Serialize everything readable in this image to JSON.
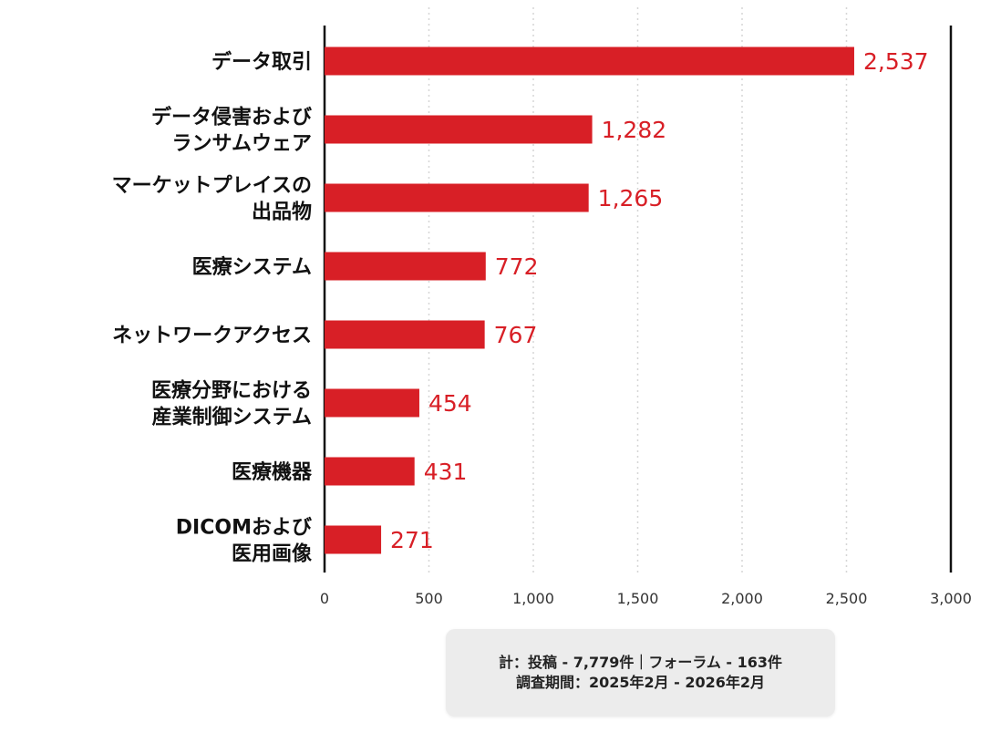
{
  "chart_data": {
    "type": "bar",
    "orientation": "horizontal",
    "categories": [
      [
        "データ取引"
      ],
      [
        "データ侵害および",
        "ランサムウェア"
      ],
      [
        "マーケットプレイスの",
        "出品物"
      ],
      [
        "医療システム"
      ],
      [
        "ネットワークアクセス"
      ],
      [
        "医療分野における",
        "産業制御システム"
      ],
      [
        "医療機器"
      ],
      [
        "DICOMおよび",
        "医用画像"
      ]
    ],
    "values": [
      2537,
      1282,
      1265,
      772,
      767,
      454,
      431,
      271
    ],
    "value_labels": [
      "2,537",
      "1,282",
      "1,265",
      "772",
      "767",
      "454",
      "431",
      "271"
    ],
    "xlim": [
      0,
      3000
    ],
    "xticks": [
      0,
      500,
      1000,
      1500,
      2000,
      2500,
      3000
    ],
    "xtick_labels": [
      "0",
      "500",
      "1,000",
      "1,500",
      "2,000",
      "2,500",
      "3,000"
    ],
    "grid": "vertical dotted",
    "bar_color": "#d81f26",
    "value_label_color": "#d81f26"
  },
  "note": {
    "line1": "計：投稿 - 7,779件｜フォーラム - 163件",
    "line2": "調査期間：2025年2月 - 2026年2月"
  }
}
